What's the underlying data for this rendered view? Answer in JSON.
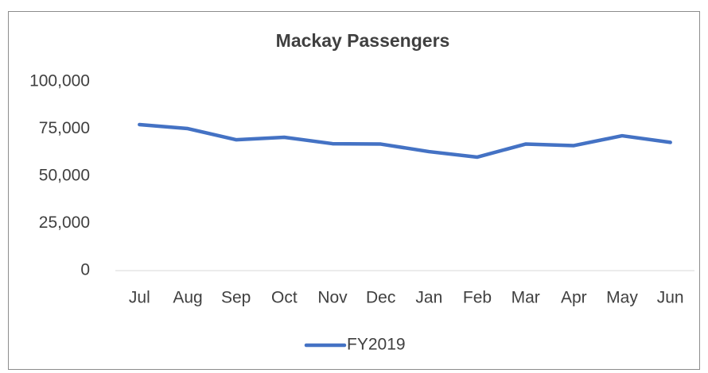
{
  "chart_data": {
    "type": "line",
    "title": "Mackay Passengers",
    "categories": [
      "Jul",
      "Aug",
      "Sep",
      "Oct",
      "Nov",
      "Dec",
      "Jan",
      "Feb",
      "Mar",
      "Apr",
      "May",
      "Jun"
    ],
    "series": [
      {
        "name": "FY2019",
        "color": "#4472c4",
        "values": [
          77300,
          75200,
          69300,
          70600,
          67200,
          67000,
          63000,
          60100,
          67000,
          66200,
          71400,
          67900
        ]
      }
    ],
    "ylim": [
      0,
      100000
    ],
    "yticks": [
      0,
      {
        "value": 25000,
        "label": "25,000"
      },
      {
        "value": 50000,
        "label": "50,000"
      },
      {
        "value": 75000,
        "label": "75,000"
      },
      {
        "value": 100000,
        "label": "100,000"
      }
    ],
    "grid": false,
    "legend": "bottom"
  }
}
